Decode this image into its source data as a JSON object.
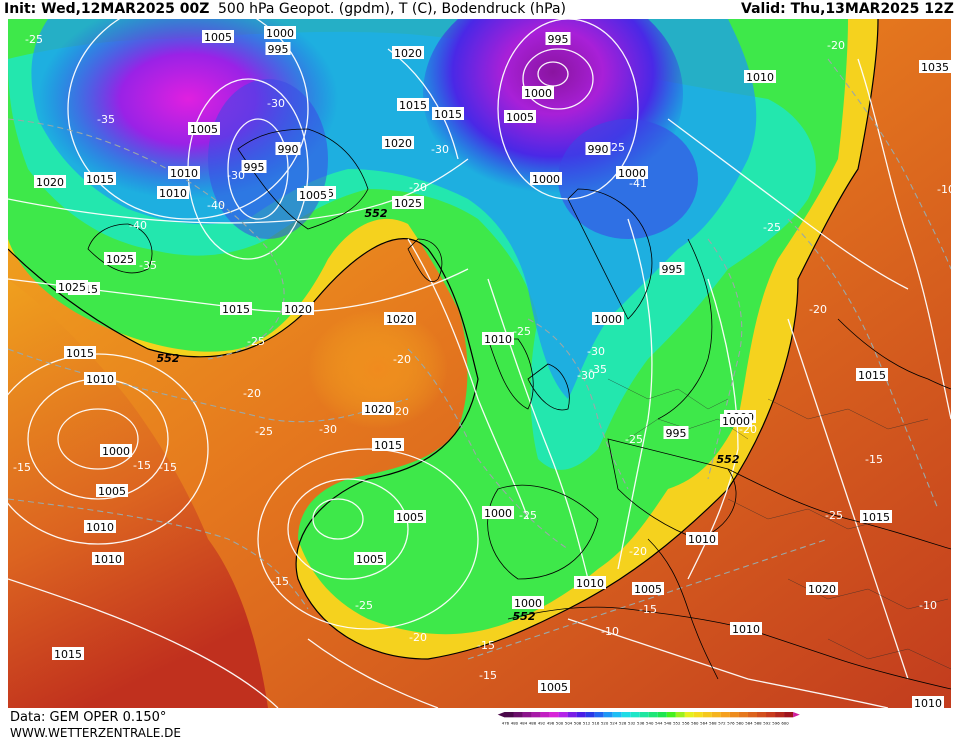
{
  "header": {
    "init": "Init: Wed,12MAR2025 00Z",
    "title": "500 hPa Geopot. (gpdm), T (C), Bodendruck (hPa)",
    "valid": "Valid: Thu,13MAR2025 12Z"
  },
  "footer": {
    "data_source": "Data: GEM OPER 0.150°",
    "website": "WWW.WETTERZENTRALE.DE"
  },
  "legend": {
    "values": [
      "476",
      "480",
      "484",
      "488",
      "492",
      "496",
      "500",
      "504",
      "508",
      "512",
      "516",
      "520",
      "524",
      "528",
      "532",
      "536",
      "540",
      "544",
      "548",
      "552",
      "556",
      "560",
      "564",
      "568",
      "572",
      "576",
      "580",
      "584",
      "588",
      "592",
      "596",
      "600"
    ],
    "colors": [
      "#4b0a4b",
      "#6a0f6a",
      "#8c148c",
      "#a81aa8",
      "#c21fc2",
      "#d824d8",
      "#b424e8",
      "#7a1ee6",
      "#4a1ee6",
      "#2a3ae6",
      "#2266f0",
      "#1e96f5",
      "#1ebef5",
      "#1edce6",
      "#1ee6c8",
      "#1ee6a0",
      "#1ee678",
      "#1ee650",
      "#46f01e",
      "#9cf01e",
      "#e6f01e",
      "#f5dc1e",
      "#f5c81e",
      "#f5b41e",
      "#f5a01e",
      "#ed8c1e",
      "#e5781e",
      "#dc641e",
      "#d2501e",
      "#c83c1e",
      "#b4281e",
      "#a0141e"
    ]
  },
  "map": {
    "pressure_labels": [
      {
        "t": "1005"
      },
      {
        "t": "1000"
      },
      {
        "t": "995"
      },
      {
        "t": "1020"
      },
      {
        "t": "995"
      },
      {
        "t": "1010"
      },
      {
        "t": "1035"
      },
      {
        "t": "1005"
      },
      {
        "t": "1000"
      },
      {
        "t": "1005"
      },
      {
        "t": "1015"
      },
      {
        "t": "1015"
      },
      {
        "t": "1005"
      },
      {
        "t": "990"
      },
      {
        "t": "1020"
      },
      {
        "t": "1010"
      },
      {
        "t": "995"
      },
      {
        "t": "1000"
      },
      {
        "t": "990"
      },
      {
        "t": "1000"
      },
      {
        "t": "1020"
      },
      {
        "t": "1015"
      },
      {
        "t": "1005"
      },
      {
        "t": "1025"
      },
      {
        "t": "1010"
      },
      {
        "t": "1025"
      },
      {
        "t": "1015"
      },
      {
        "t": "995"
      },
      {
        "t": "1025"
      },
      {
        "t": "1020"
      },
      {
        "t": "1015"
      },
      {
        "t": "1020"
      },
      {
        "t": "1010"
      },
      {
        "t": "1000"
      },
      {
        "t": "1015"
      },
      {
        "t": "1010"
      },
      {
        "t": "1020"
      },
      {
        "t": "1015"
      },
      {
        "t": "1000"
      },
      {
        "t": "995"
      },
      {
        "t": "1000"
      },
      {
        "t": "1005"
      },
      {
        "t": "1010"
      },
      {
        "t": "1005"
      },
      {
        "t": "1000"
      },
      {
        "t": "1015"
      },
      {
        "t": "1010"
      },
      {
        "t": "1005"
      },
      {
        "t": "1010"
      },
      {
        "t": "1015"
      },
      {
        "t": "1000"
      },
      {
        "t": "1005"
      },
      {
        "t": "1000"
      },
      {
        "t": "1010"
      },
      {
        "t": "1020"
      },
      {
        "t": "1010"
      },
      {
        "t": "1005"
      },
      {
        "t": "1015"
      },
      {
        "t": "1010"
      }
    ],
    "temp_labels": [
      {
        "t": "-25"
      },
      {
        "t": "-35"
      },
      {
        "t": "-30"
      },
      {
        "t": "-30"
      },
      {
        "t": "-40"
      },
      {
        "t": "-40"
      },
      {
        "t": "-35"
      },
      {
        "t": "-30"
      },
      {
        "t": "-20"
      },
      {
        "t": "-25"
      },
      {
        "t": "-20"
      },
      {
        "t": "-20"
      },
      {
        "t": "-25"
      },
      {
        "t": "-30"
      },
      {
        "t": "-35"
      },
      {
        "t": "-25"
      },
      {
        "t": "-20"
      },
      {
        "t": "-25"
      },
      {
        "t": "-20"
      },
      {
        "t": "-20"
      },
      {
        "t": "-15"
      },
      {
        "t": "-15"
      },
      {
        "t": "-15"
      },
      {
        "t": "-25"
      },
      {
        "t": "-25"
      },
      {
        "t": "-15"
      },
      {
        "t": "-20"
      },
      {
        "t": "-15"
      },
      {
        "t": "-15"
      },
      {
        "t": "-10"
      },
      {
        "t": "-20"
      },
      {
        "t": "-15"
      },
      {
        "t": "-10"
      },
      {
        "t": "-25"
      },
      {
        "t": "-30"
      },
      {
        "t": "-20"
      },
      {
        "t": "-25"
      },
      {
        "t": "-15"
      },
      {
        "t": "-25"
      },
      {
        "t": "-41"
      },
      {
        "t": "-30"
      },
      {
        "t": "-10"
      }
    ],
    "contour_labels": [
      {
        "t": "552"
      },
      {
        "t": "552"
      },
      {
        "t": "552"
      },
      {
        "t": "552"
      }
    ]
  }
}
